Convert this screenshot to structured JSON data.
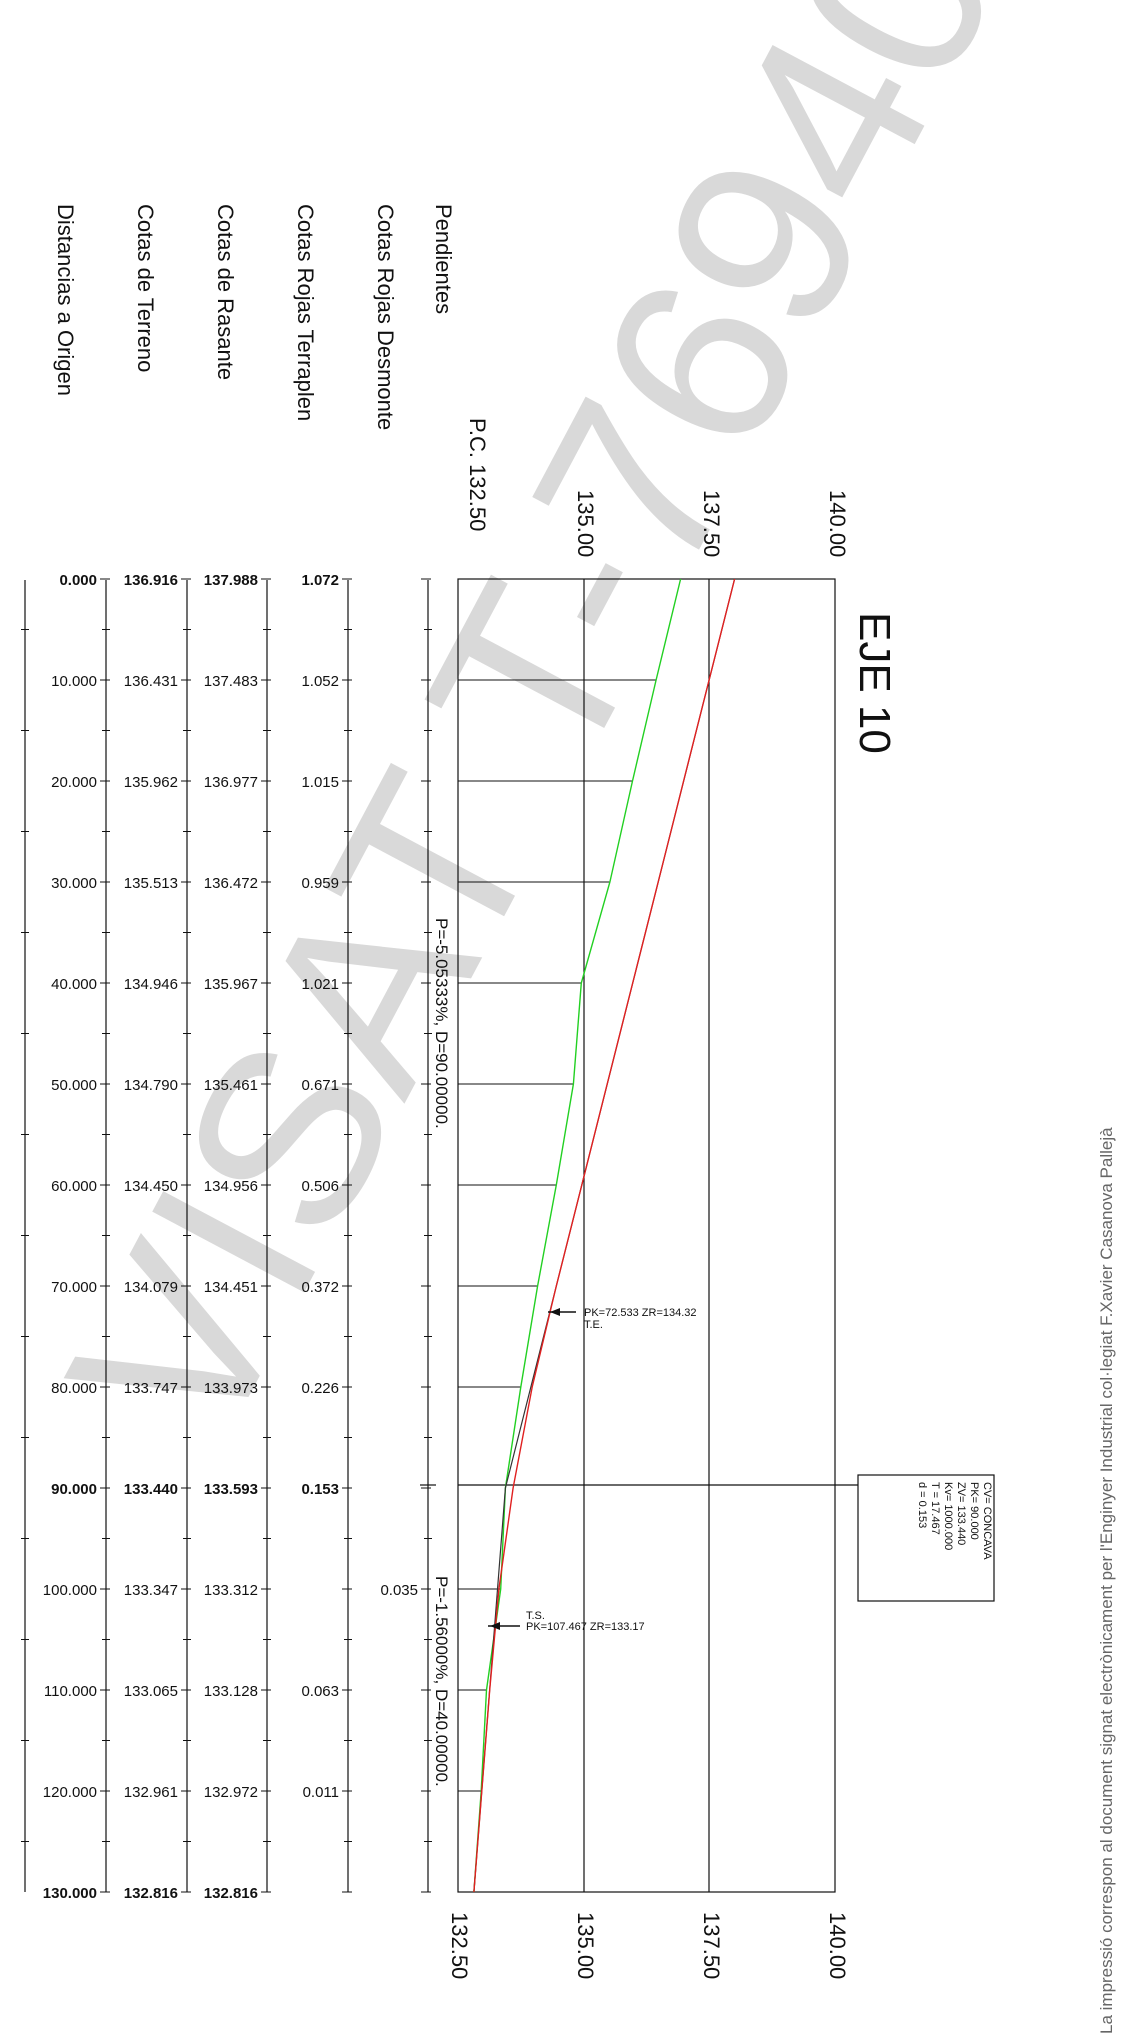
{
  "watermark": "VISAT T-76940",
  "title": "EJE 10",
  "side_note": "La impressió correspon al document signat electrònicament per l'Enginyer Industrial col·legiat F.Xavier Casanova Pallejà",
  "row_labels": {
    "pendientes": "Pendientes",
    "desmonte": "Cotas Rojas Desmonte",
    "terraplen": "Cotas Rojas Terraplen",
    "rasante": "Cotas de Rasante",
    "terreno": "Cotas de Terreno",
    "distancias": "Distancias a Origen"
  },
  "pc_label": "P.C. 132.50",
  "elevation_ticks": [
    "132.50",
    "135.00",
    "137.50",
    "140.00"
  ],
  "elevation_top_labels": [
    "135.00",
    "137.50",
    "140.00"
  ],
  "stations": [
    {
      "dist": "0.000",
      "terreno": "136.916",
      "rasante": "137.988",
      "terraplen": "1.072",
      "desmonte": "",
      "bold": true
    },
    {
      "dist": "10.000",
      "terreno": "136.431",
      "rasante": "137.483",
      "terraplen": "1.052",
      "desmonte": "",
      "bold": false
    },
    {
      "dist": "20.000",
      "terreno": "135.962",
      "rasante": "136.977",
      "terraplen": "1.015",
      "desmonte": "",
      "bold": false
    },
    {
      "dist": "30.000",
      "terreno": "135.513",
      "rasante": "136.472",
      "terraplen": "0.959",
      "desmonte": "",
      "bold": false
    },
    {
      "dist": "40.000",
      "terreno": "134.946",
      "rasante": "135.967",
      "terraplen": "1.021",
      "desmonte": "",
      "bold": false
    },
    {
      "dist": "50.000",
      "terreno": "134.790",
      "rasante": "135.461",
      "terraplen": "0.671",
      "desmonte": "",
      "bold": false
    },
    {
      "dist": "60.000",
      "terreno": "134.450",
      "rasante": "134.956",
      "terraplen": "0.506",
      "desmonte": "",
      "bold": false
    },
    {
      "dist": "70.000",
      "terreno": "134.079",
      "rasante": "134.451",
      "terraplen": "0.372",
      "desmonte": "",
      "bold": false
    },
    {
      "dist": "80.000",
      "terreno": "133.747",
      "rasante": "133.973",
      "terraplen": "0.226",
      "desmonte": "",
      "bold": false
    },
    {
      "dist": "90.000",
      "terreno": "133.440",
      "rasante": "133.593",
      "terraplen": "0.153",
      "desmonte": "",
      "bold": true
    },
    {
      "dist": "100.000",
      "terreno": "133.347",
      "rasante": "133.312",
      "terraplen": "",
      "desmonte": "0.035",
      "bold": false
    },
    {
      "dist": "110.000",
      "terreno": "133.065",
      "rasante": "133.128",
      "terraplen": "0.063",
      "desmonte": "",
      "bold": false
    },
    {
      "dist": "120.000",
      "terreno": "132.961",
      "rasante": "132.972",
      "terraplen": "0.011",
      "desmonte": "",
      "bold": false
    },
    {
      "dist": "130.000",
      "terreno": "132.816",
      "rasante": "132.816",
      "terraplen": "",
      "desmonte": "",
      "bold": true
    }
  ],
  "slopes": [
    {
      "text": "P=-5.05333%, D=90.00000."
    },
    {
      "text": "P=-1.56000%, D=40.00000."
    }
  ],
  "annotations": {
    "te_line1": "PK=72.533  ZR=134.32",
    "te_line2": "T.E.",
    "ts_line1": "T.S.",
    "ts_line2": "PK=107.467  ZR=133.17"
  },
  "vertical_curve": [
    "CV= CONCAVA",
    "PK= 90.000",
    "ZV= 133.440",
    "Kv= 1000.000",
    "T = 17.467",
    "d = 0.153"
  ],
  "terrain_profile": {
    "pk": [
      0,
      10,
      20,
      30,
      40,
      50,
      60,
      70,
      80,
      90,
      100,
      110,
      120,
      130
    ],
    "z": [
      136.916,
      136.431,
      135.962,
      135.513,
      134.946,
      134.79,
      134.45,
      134.079,
      133.747,
      133.44,
      133.347,
      133.065,
      132.961,
      132.816
    ]
  },
  "grade_tangent": {
    "pk": [
      0,
      90,
      130
    ],
    "z": [
      137.988,
      133.44,
      132.816
    ]
  },
  "red_profile": {
    "pk": [
      0,
      10,
      20,
      30,
      40,
      50,
      60,
      70,
      80,
      90,
      100,
      110,
      120,
      130
    ],
    "z": [
      137.988,
      137.483,
      136.977,
      136.472,
      135.967,
      135.461,
      134.956,
      134.451,
      133.973,
      133.593,
      133.312,
      133.128,
      132.972,
      132.816
    ]
  },
  "colors": {
    "terrain": "#22d022",
    "red": "#e02020",
    "tangent": "#333333",
    "watermark": "#d9d9d9"
  }
}
